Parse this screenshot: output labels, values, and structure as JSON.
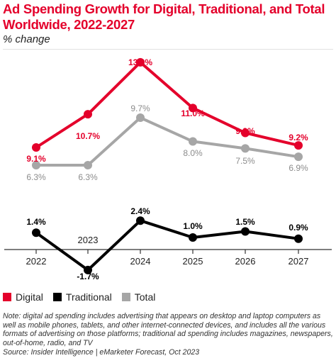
{
  "chart_data": {
    "type": "line",
    "title": "Ad Spending Growth for Digital, Traditional, and Total Worldwide, 2022-2027",
    "subtitle": "% change",
    "x": [
      "2022",
      "2023",
      "2024",
      "2025",
      "2026",
      "2027"
    ],
    "series": [
      {
        "name": "Digital",
        "color": "#e4002b",
        "values": [
          9.1,
          10.7,
          13.2,
          11.0,
          9.8,
          9.2
        ],
        "labels": [
          "9.1%",
          "10.7%",
          "13.2%",
          "11.0%",
          "9.8%",
          "9.2%"
        ]
      },
      {
        "name": "Traditional",
        "color": "#000000",
        "values": [
          1.4,
          -1.7,
          2.4,
          1.0,
          1.5,
          0.9
        ],
        "labels": [
          "1.4%",
          "-1.7%",
          "2.4%",
          "1.0%",
          "1.5%",
          "0.9%"
        ]
      },
      {
        "name": "Total",
        "color": "#a6a6a6",
        "values": [
          6.3,
          6.3,
          9.7,
          8.0,
          7.5,
          6.9
        ],
        "labels": [
          "6.3%",
          "6.3%",
          "9.7%",
          "8.0%",
          "7.5%",
          "6.9%"
        ]
      }
    ],
    "grid": false,
    "legend_position": "bottom-left"
  },
  "note": "Note: digital ad spending includes advertising that appears on desktop and laptop computers as well as mobile phones, tablets, and other internet-connected devices, and includes all the various formats of advertising on those platforms; traditional ad spending includes magazines, newspapers, out-of-home, radio, and TV",
  "source": "Source: Insider Intelligence | eMarketer Forecast, Oct 2023"
}
